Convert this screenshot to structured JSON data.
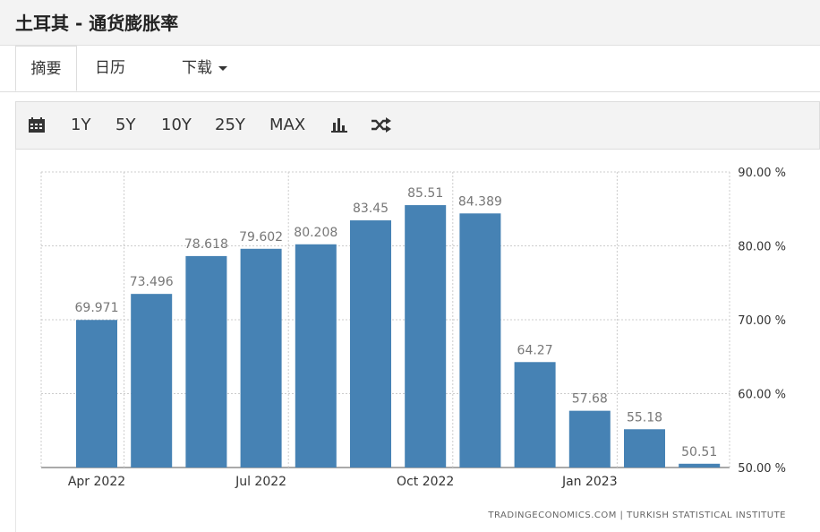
{
  "header": {
    "title": "土耳其 - 通货膨胀率"
  },
  "tabs": [
    {
      "label": "摘要"
    },
    {
      "label": "日历"
    },
    {
      "label": "下载"
    }
  ],
  "toolbar": {
    "calendar_icon": "calendar-icon",
    "ranges": [
      "1Y",
      "5Y",
      "10Y",
      "25Y",
      "MAX"
    ],
    "bar_chart_icon": "bar-chart-icon",
    "shuffle_icon": "shuffle-icon"
  },
  "chart_data": {
    "type": "bar",
    "color": "#4682b4",
    "categories": [
      "Apr 2022",
      "May 2022",
      "Jun 2022",
      "Jul 2022",
      "Aug 2022",
      "Sep 2022",
      "Oct 2022",
      "Nov 2022",
      "Dec 2022",
      "Jan 2023",
      "Feb 2023",
      "Mar 2023"
    ],
    "values": [
      69.971,
      73.496,
      78.618,
      79.602,
      80.208,
      83.45,
      85.51,
      84.389,
      64.27,
      57.68,
      55.18,
      50.51
    ],
    "value_labels": [
      "69.971",
      "73.496",
      "78.618",
      "79.602",
      "80.208",
      "83.45",
      "85.51",
      "84.389",
      "64.27",
      "57.68",
      "55.18",
      "50.51"
    ],
    "x_tick_labels": [
      "Apr 2022",
      "Jul 2022",
      "Oct 2022",
      "Jan 2023"
    ],
    "x_tick_categories": [
      "Apr 2022",
      "Jul 2022",
      "Oct 2022",
      "Jan 2023"
    ],
    "ylim": [
      50,
      90
    ],
    "y_ticks": [
      50,
      60,
      70,
      80,
      90
    ],
    "y_tick_labels": [
      "50.00 %",
      "60.00 %",
      "70.00 %",
      "80.00 %",
      "90.00 %"
    ],
    "grid": true,
    "y_axis_position": "right",
    "source": "TRADINGECONOMICS.COM  |  TURKISH STATISTICAL INSTITUTE"
  }
}
